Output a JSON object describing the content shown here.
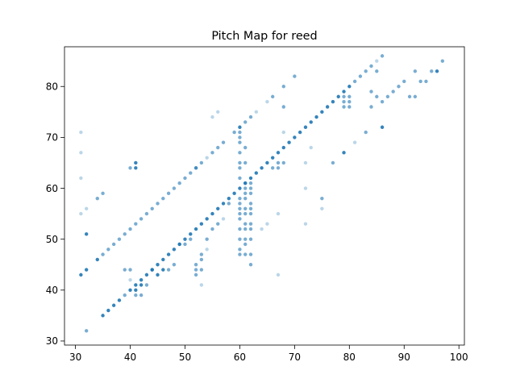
{
  "chart_data": {
    "type": "scatter",
    "title": "Pitch Map for reed",
    "xlabel": "",
    "ylabel": "",
    "xlim": [
      28,
      101
    ],
    "ylim": [
      29.2,
      87.8
    ],
    "xticks": [
      30,
      40,
      50,
      60,
      70,
      80,
      90,
      100
    ],
    "yticks": [
      30,
      40,
      50,
      60,
      70,
      80
    ],
    "grid": false,
    "legend": "none",
    "marker_color": "#1f77b4",
    "opacity_levels": {
      "high": 0.9,
      "mid": 0.6,
      "low": 0.3
    },
    "points": [
      [
        31,
        43,
        "high"
      ],
      [
        32,
        44,
        "high"
      ],
      [
        34,
        46,
        "high"
      ],
      [
        35,
        47,
        "mid"
      ],
      [
        36,
        48,
        "mid"
      ],
      [
        37,
        49,
        "mid"
      ],
      [
        38,
        50,
        "mid"
      ],
      [
        39,
        51,
        "mid"
      ],
      [
        40,
        52,
        "mid"
      ],
      [
        41,
        53,
        "mid"
      ],
      [
        42,
        54,
        "mid"
      ],
      [
        43,
        55,
        "mid"
      ],
      [
        44,
        56,
        "mid"
      ],
      [
        45,
        57,
        "mid"
      ],
      [
        46,
        58,
        "mid"
      ],
      [
        47,
        59,
        "mid"
      ],
      [
        48,
        60,
        "mid"
      ],
      [
        49,
        61,
        "mid"
      ],
      [
        50,
        62,
        "mid"
      ],
      [
        51,
        63,
        "mid"
      ],
      [
        52,
        64,
        "mid"
      ],
      [
        53,
        65,
        "mid"
      ],
      [
        54,
        66,
        "low"
      ],
      [
        55,
        67,
        "mid"
      ],
      [
        56,
        68,
        "mid"
      ],
      [
        57,
        69,
        "mid"
      ],
      [
        59,
        71,
        "mid"
      ],
      [
        60,
        72,
        "high"
      ],
      [
        61,
        73,
        "mid"
      ],
      [
        62,
        74,
        "mid"
      ],
      [
        63,
        75,
        "low"
      ],
      [
        35,
        35,
        "high"
      ],
      [
        36,
        36,
        "high"
      ],
      [
        37,
        37,
        "high"
      ],
      [
        38,
        38,
        "high"
      ],
      [
        39,
        39,
        "mid"
      ],
      [
        40,
        40,
        "high"
      ],
      [
        41,
        41,
        "high"
      ],
      [
        42,
        42,
        "high"
      ],
      [
        43,
        43,
        "high"
      ],
      [
        44,
        44,
        "high"
      ],
      [
        45,
        45,
        "high"
      ],
      [
        46,
        46,
        "high"
      ],
      [
        47,
        47,
        "high"
      ],
      [
        48,
        48,
        "high"
      ],
      [
        49,
        49,
        "high"
      ],
      [
        50,
        50,
        "high"
      ],
      [
        51,
        51,
        "high"
      ],
      [
        52,
        52,
        "high"
      ],
      [
        53,
        53,
        "high"
      ],
      [
        54,
        54,
        "high"
      ],
      [
        55,
        55,
        "high"
      ],
      [
        56,
        56,
        "high"
      ],
      [
        57,
        57,
        "high"
      ],
      [
        58,
        58,
        "high"
      ],
      [
        59,
        59,
        "high"
      ],
      [
        60,
        60,
        "high"
      ],
      [
        61,
        61,
        "high"
      ],
      [
        62,
        62,
        "high"
      ],
      [
        63,
        63,
        "high"
      ],
      [
        64,
        64,
        "high"
      ],
      [
        65,
        65,
        "high"
      ],
      [
        66,
        66,
        "high"
      ],
      [
        67,
        67,
        "high"
      ],
      [
        68,
        68,
        "high"
      ],
      [
        69,
        69,
        "high"
      ],
      [
        70,
        70,
        "high"
      ],
      [
        71,
        71,
        "high"
      ],
      [
        72,
        72,
        "high"
      ],
      [
        73,
        73,
        "high"
      ],
      [
        74,
        74,
        "high"
      ],
      [
        75,
        75,
        "high"
      ],
      [
        76,
        76,
        "high"
      ],
      [
        77,
        77,
        "high"
      ],
      [
        78,
        78,
        "high"
      ],
      [
        79,
        79,
        "high"
      ],
      [
        80,
        80,
        "high"
      ],
      [
        81,
        81,
        "mid"
      ],
      [
        82,
        82,
        "mid"
      ],
      [
        83,
        83,
        "mid"
      ],
      [
        84,
        84,
        "mid"
      ],
      [
        85,
        85,
        "low"
      ],
      [
        86,
        86,
        "mid"
      ],
      [
        85,
        78,
        "mid"
      ],
      [
        86,
        77,
        "mid"
      ],
      [
        87,
        78,
        "mid"
      ],
      [
        88,
        79,
        "mid"
      ],
      [
        89,
        80,
        "mid"
      ],
      [
        90,
        81,
        "mid"
      ],
      [
        91,
        78,
        "mid"
      ],
      [
        92,
        78,
        "mid"
      ],
      [
        92,
        83,
        "mid"
      ],
      [
        93,
        81,
        "mid"
      ],
      [
        94,
        81,
        "mid"
      ],
      [
        95,
        83,
        "mid"
      ],
      [
        96,
        83,
        "high"
      ],
      [
        97,
        85,
        "mid"
      ],
      [
        79,
        76,
        "mid"
      ],
      [
        80,
        76,
        "mid"
      ],
      [
        79,
        77,
        "mid"
      ],
      [
        80,
        77,
        "mid"
      ],
      [
        79,
        78,
        "mid"
      ],
      [
        80,
        78,
        "mid"
      ],
      [
        84,
        76,
        "mid"
      ],
      [
        84,
        79,
        "mid"
      ],
      [
        85,
        83,
        "mid"
      ],
      [
        86,
        72,
        "high"
      ],
      [
        83,
        71,
        "mid"
      ],
      [
        81,
        69,
        "low"
      ],
      [
        79,
        67,
        "high"
      ],
      [
        77,
        65,
        "mid"
      ],
      [
        75,
        58,
        "mid"
      ],
      [
        75,
        56,
        "low"
      ],
      [
        72,
        53,
        "low"
      ],
      [
        72,
        60,
        "low"
      ],
      [
        72,
        65,
        "low"
      ],
      [
        73,
        68,
        "low"
      ],
      [
        68,
        80,
        "mid"
      ],
      [
        68,
        76,
        "mid"
      ],
      [
        66,
        78,
        "mid"
      ],
      [
        65,
        77,
        "low"
      ],
      [
        70,
        82,
        "mid"
      ],
      [
        68,
        71,
        "low"
      ],
      [
        68,
        65,
        "mid"
      ],
      [
        67,
        64,
        "mid"
      ],
      [
        67,
        65,
        "mid"
      ],
      [
        66,
        64,
        "mid"
      ],
      [
        31,
        55,
        "low"
      ],
      [
        31,
        62,
        "low"
      ],
      [
        31,
        67,
        "low"
      ],
      [
        31,
        71,
        "low"
      ],
      [
        32,
        56,
        "low"
      ],
      [
        32,
        51,
        "high"
      ],
      [
        32,
        32,
        "mid"
      ],
      [
        34,
        58,
        "mid"
      ],
      [
        35,
        59,
        "mid"
      ],
      [
        40,
        64,
        "mid"
      ],
      [
        41,
        64,
        "high"
      ],
      [
        41,
        65,
        "high"
      ],
      [
        52,
        64,
        "mid"
      ],
      [
        55,
        74,
        "low"
      ],
      [
        56,
        75,
        "low"
      ],
      [
        39,
        44,
        "mid"
      ],
      [
        40,
        44,
        "mid"
      ],
      [
        40,
        42,
        "low"
      ],
      [
        41,
        40,
        "high"
      ],
      [
        41,
        39,
        "mid"
      ],
      [
        42,
        41,
        "high"
      ],
      [
        42,
        39,
        "mid"
      ],
      [
        43,
        41,
        "mid"
      ],
      [
        44,
        44,
        "high"
      ],
      [
        45,
        43,
        "high"
      ],
      [
        46,
        44,
        "high"
      ],
      [
        47,
        44,
        "mid"
      ],
      [
        48,
        45,
        "mid"
      ],
      [
        49,
        49,
        "mid"
      ],
      [
        50,
        49,
        "mid"
      ],
      [
        51,
        50,
        "mid"
      ],
      [
        52,
        45,
        "mid"
      ],
      [
        52,
        44,
        "mid"
      ],
      [
        52,
        43,
        "mid"
      ],
      [
        53,
        44,
        "mid"
      ],
      [
        53,
        46,
        "mid"
      ],
      [
        53,
        41,
        "low"
      ],
      [
        53,
        47,
        "mid"
      ],
      [
        54,
        48,
        "low"
      ],
      [
        54,
        50,
        "mid"
      ],
      [
        55,
        52,
        "mid"
      ],
      [
        56,
        53,
        "mid"
      ],
      [
        57,
        54,
        "low"
      ],
      [
        58,
        57,
        "mid"
      ],
      [
        60,
        47,
        "mid"
      ],
      [
        60,
        48,
        "mid"
      ],
      [
        60,
        50,
        "mid"
      ],
      [
        60,
        52,
        "mid"
      ],
      [
        60,
        54,
        "mid"
      ],
      [
        60,
        55,
        "mid"
      ],
      [
        60,
        56,
        "mid"
      ],
      [
        60,
        57,
        "mid"
      ],
      [
        60,
        58,
        "mid"
      ],
      [
        60,
        62,
        "mid"
      ],
      [
        60,
        64,
        "mid"
      ],
      [
        60,
        65,
        "mid"
      ],
      [
        60,
        67,
        "mid"
      ],
      [
        60,
        69,
        "mid"
      ],
      [
        60,
        70,
        "mid"
      ],
      [
        60,
        71,
        "mid"
      ],
      [
        61,
        47,
        "mid"
      ],
      [
        61,
        49,
        "mid"
      ],
      [
        61,
        50,
        "mid"
      ],
      [
        61,
        52,
        "mid"
      ],
      [
        61,
        53,
        "mid"
      ],
      [
        61,
        55,
        "mid"
      ],
      [
        61,
        56,
        "mid"
      ],
      [
        61,
        58,
        "mid"
      ],
      [
        61,
        59,
        "mid"
      ],
      [
        61,
        60,
        "mid"
      ],
      [
        61,
        61,
        "mid"
      ],
      [
        61,
        65,
        "mid"
      ],
      [
        61,
        68,
        "mid"
      ],
      [
        62,
        45,
        "mid"
      ],
      [
        62,
        47,
        "mid"
      ],
      [
        62,
        50,
        "mid"
      ],
      [
        62,
        52,
        "mid"
      ],
      [
        62,
        53,
        "mid"
      ],
      [
        62,
        55,
        "mid"
      ],
      [
        62,
        56,
        "mid"
      ],
      [
        62,
        57,
        "mid"
      ],
      [
        62,
        59,
        "mid"
      ],
      [
        62,
        60,
        "mid"
      ],
      [
        62,
        61,
        "mid"
      ],
      [
        64,
        52,
        "low"
      ],
      [
        65,
        53,
        "low"
      ],
      [
        67,
        55,
        "low"
      ],
      [
        67,
        43,
        "low"
      ]
    ]
  }
}
